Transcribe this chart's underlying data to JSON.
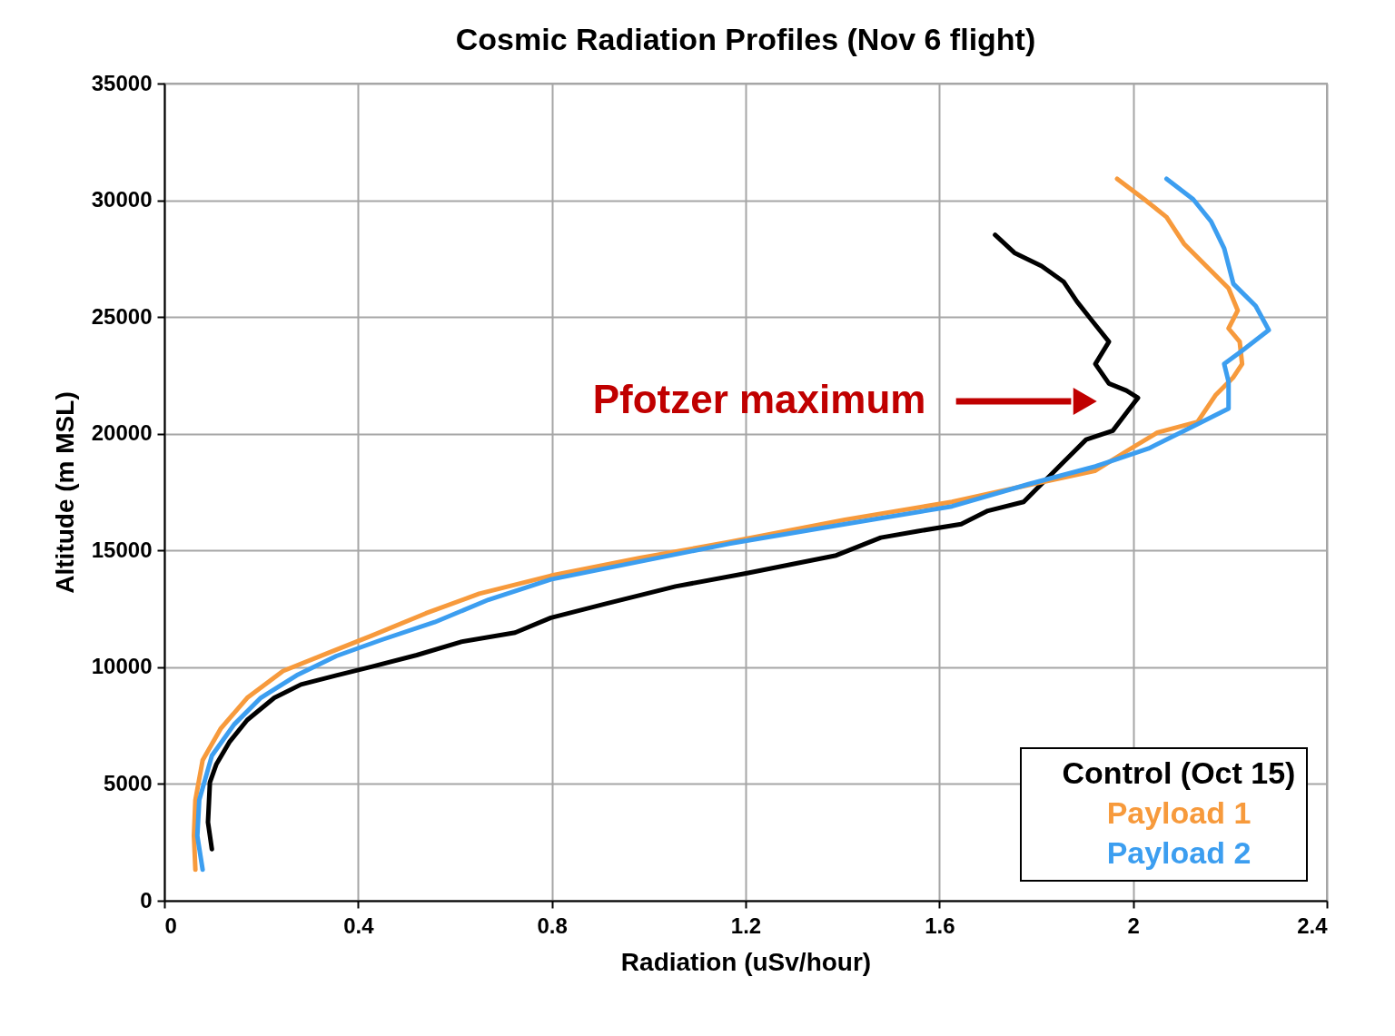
{
  "chart_data": {
    "type": "line",
    "title": "Cosmic Radiation Profiles (Nov 6 flight)",
    "xlabel": "Radiation (uSv/hour)",
    "ylabel": "Altitude (m MSL)",
    "xlim": [
      0,
      2.4
    ],
    "xticks": [
      0,
      0.4,
      0.8,
      1.2,
      1.6,
      2,
      2.4
    ],
    "ylim": [
      0,
      35000
    ],
    "yticks": [
      0,
      5000,
      10000,
      15000,
      20000,
      25000,
      30000,
      35000
    ],
    "grid": true,
    "legend": "bottom right",
    "marker": "none",
    "line_style": "solid",
    "annotations": [
      "Pfotzer maximum"
    ],
    "series": [
      {
        "name": "Control (Oct 15)",
        "color": "#000000",
        "x": [
          0.098,
          0.09,
          0.094,
          0.107,
          0.134,
          0.171,
          0.227,
          0.282,
          0.355,
          0.429,
          0.521,
          0.613,
          0.724,
          0.798,
          0.908,
          1.055,
          1.203,
          1.387,
          1.479,
          1.553,
          1.645,
          1.7,
          1.774,
          1.801,
          1.829,
          1.866,
          1.903,
          1.958,
          1.986,
          2.01,
          1.986,
          1.95,
          1.922,
          1.95,
          1.913,
          1.884,
          1.857,
          1.811,
          1.755,
          1.715
        ],
        "values": [
          2210,
          3360,
          5070,
          5830,
          6790,
          7740,
          8690,
          9260,
          9650,
          10030,
          10520,
          11090,
          11480,
          12120,
          12700,
          13460,
          14030,
          14790,
          15550,
          15820,
          16130,
          16700,
          17080,
          17650,
          18220,
          18990,
          19750,
          20130,
          20890,
          21540,
          21850,
          22150,
          22990,
          23940,
          24900,
          25660,
          26500,
          27180,
          27750,
          28520
        ]
      },
      {
        "name": "Payload 1",
        "color": "#f79a3c",
        "x": [
          0.064,
          0.061,
          0.064,
          0.079,
          0.116,
          0.171,
          0.245,
          0.337,
          0.429,
          0.54,
          0.65,
          0.798,
          0.982,
          1.166,
          1.405,
          1.626,
          1.792,
          1.921,
          1.986,
          2.05,
          2.133,
          2.17,
          2.207,
          2.225,
          2.22,
          2.197,
          2.216,
          2.197,
          2.151,
          2.105,
          2.069,
          2.023,
          1.967
        ],
        "values": [
          1330,
          2780,
          4310,
          6020,
          7360,
          8690,
          9840,
          10600,
          11360,
          12310,
          13150,
          13920,
          14680,
          15360,
          16320,
          17080,
          17840,
          18410,
          19250,
          20050,
          20510,
          21650,
          22420,
          22990,
          23940,
          24510,
          25280,
          26230,
          27180,
          28140,
          29280,
          30040,
          30920
        ]
      },
      {
        "name": "Payload 2",
        "color": "#3c9ef0",
        "x": [
          0.079,
          0.068,
          0.072,
          0.098,
          0.144,
          0.199,
          0.273,
          0.355,
          0.448,
          0.558,
          0.669,
          0.798,
          0.982,
          1.166,
          1.405,
          1.626,
          1.784,
          1.922,
          2.032,
          2.124,
          2.197,
          2.197,
          2.188,
          2.225,
          2.28,
          2.253,
          2.207,
          2.188,
          2.161,
          2.124,
          2.069
        ],
        "values": [
          1330,
          2780,
          4310,
          6210,
          7550,
          8690,
          9650,
          10480,
          11170,
          11930,
          12890,
          13760,
          14530,
          15290,
          16130,
          16890,
          17840,
          18600,
          19370,
          20320,
          21080,
          22230,
          22990,
          23560,
          24440,
          25470,
          26420,
          27940,
          29090,
          30040,
          30920
        ]
      }
    ]
  }
}
